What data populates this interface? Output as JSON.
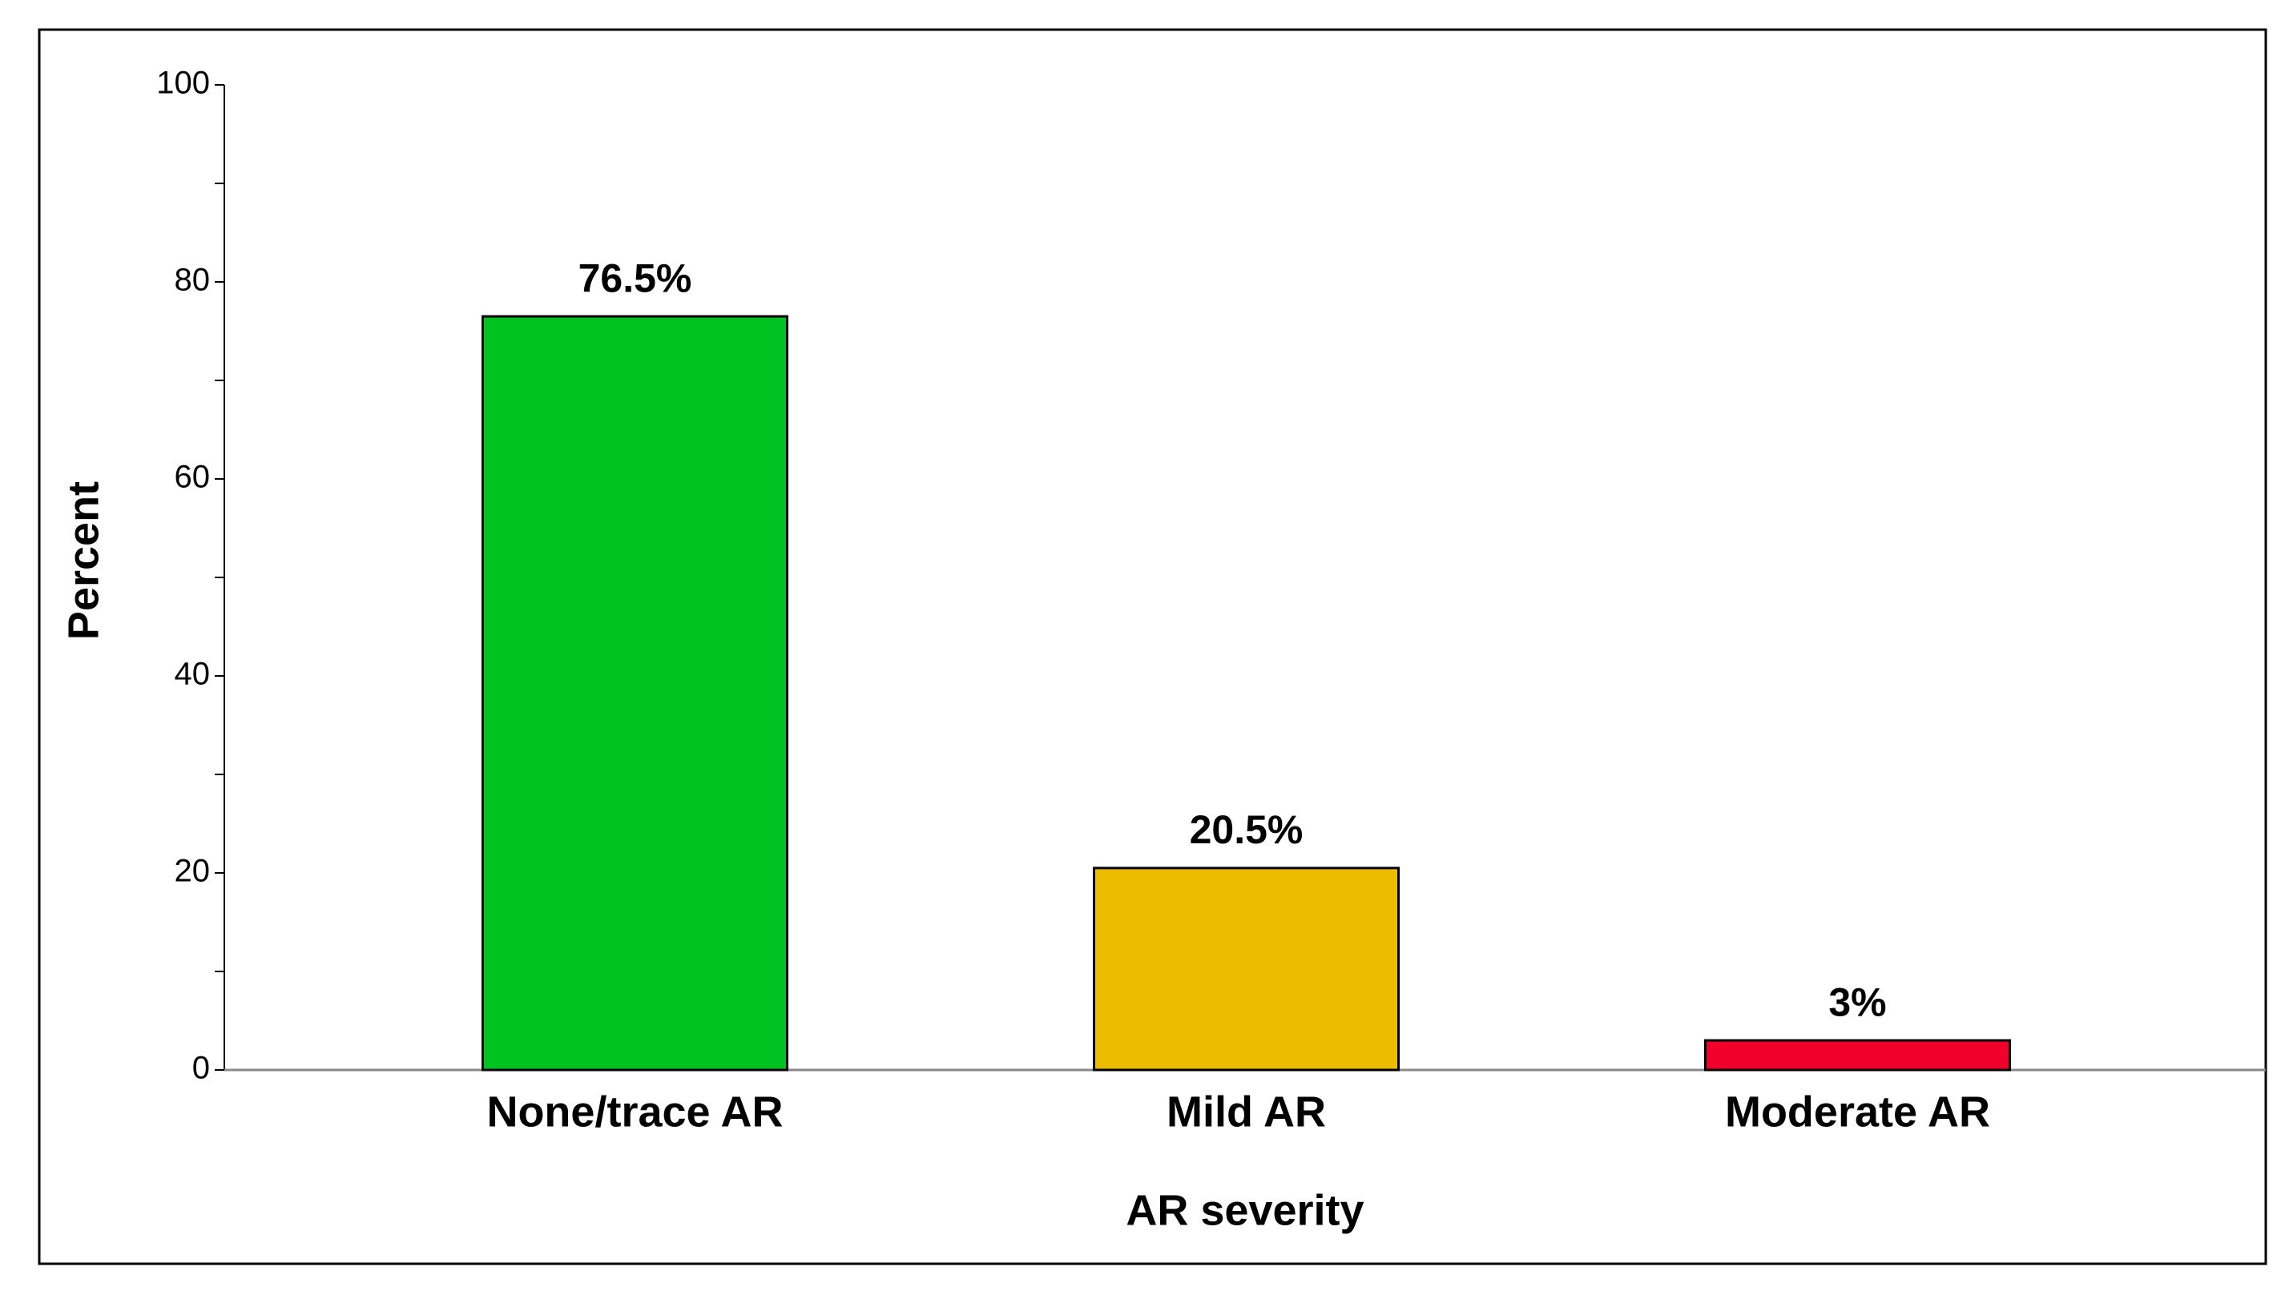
{
  "chart_data": {
    "type": "bar",
    "categories": [
      "None/trace AR",
      "Mild AR",
      "Moderate AR"
    ],
    "values": [
      76.5,
      20.5,
      3
    ],
    "value_labels": [
      "76.5%",
      "20.5%",
      "3%"
    ],
    "colors": [
      "#00c322",
      "#ecbc00",
      "#f0002a"
    ],
    "xlabel": "AR severity",
    "ylabel": "Percent",
    "ylim": [
      0,
      100
    ],
    "yticks": [
      0,
      20,
      40,
      60,
      80,
      100
    ],
    "yminor_ticks": [
      10,
      30,
      50,
      70,
      90
    ]
  }
}
